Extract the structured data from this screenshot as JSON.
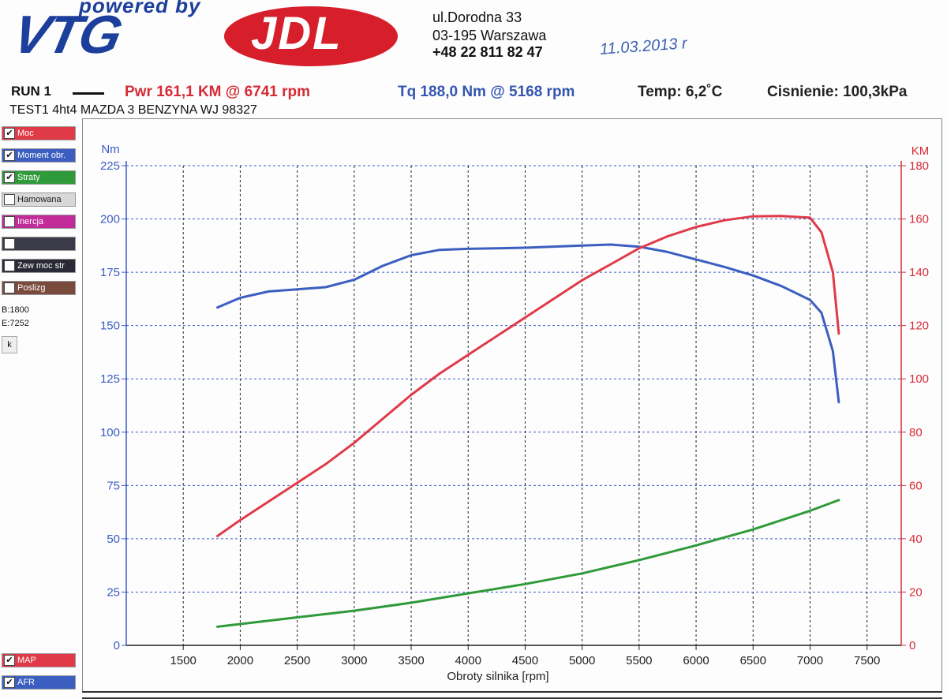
{
  "logo": {
    "powered": "powered by",
    "vtg": "VTG",
    "jdl": "JDL"
  },
  "address": {
    "street": "ul.Dorodna 33",
    "city": "03-195 Warszawa",
    "phone": "+48 22 811 82 47"
  },
  "handwritten_date": "11.03.2013 r",
  "header": {
    "run": "RUN 1",
    "pwr": "Pwr  161,1 KM @ 6741 rpm",
    "tq": "Tq 188,0 Nm @ 5168 rpm",
    "temp": "Temp: 6,2˚C",
    "pressure": "Cisnienie: 100,3kPa",
    "test": "TEST1  4ht4 MAZDA 3 BENZYNA WJ 98327"
  },
  "sidebar": {
    "items": [
      {
        "label": "Moc",
        "checked": true,
        "color": "#e03a48"
      },
      {
        "label": "Moment obr.",
        "checked": true,
        "color": "#3b5ec0"
      },
      {
        "label": "Straty",
        "checked": true,
        "color": "#2f9a3a"
      },
      {
        "label": "Hamowana",
        "checked": false,
        "color": "#d8d8d8"
      },
      {
        "label": "Inercja",
        "checked": false,
        "color": "#c22b9a"
      },
      {
        "label": "",
        "checked": false,
        "color": "#3a3a48"
      },
      {
        "label": "Zew moc str",
        "checked": false,
        "color": "#2a2a36"
      },
      {
        "label": "Poslizg",
        "checked": false,
        "color": "#7a4a3c"
      }
    ],
    "range_b": "B:1800",
    "range_e": "E:7252",
    "k_button": "k",
    "bottom_items": [
      {
        "label": "MAP",
        "checked": true,
        "color": "#e03a48"
      },
      {
        "label": "AFR",
        "checked": true,
        "color": "#3b5ec0"
      }
    ]
  },
  "chart_data": {
    "type": "line",
    "xlabel": "Obroty silnika [rpm]",
    "ylabel_left": "Nm",
    "ylabel_right": "KM",
    "xlim": [
      1000,
      7800
    ],
    "xticks": [
      1500,
      2000,
      2500,
      3000,
      3500,
      4000,
      4500,
      5000,
      5500,
      6000,
      6500,
      7000,
      7500
    ],
    "ylim_left": [
      0,
      225
    ],
    "yticks_left": [
      0,
      25,
      50,
      75,
      100,
      125,
      150,
      175,
      200,
      225
    ],
    "ylim_right": [
      0,
      180
    ],
    "yticks_right": [
      0,
      20,
      40,
      60,
      80,
      100,
      120,
      140,
      160,
      180
    ],
    "grid": true,
    "series": [
      {
        "name": "Moment obr.",
        "axis": "left",
        "color": "#3b5ec0",
        "x": [
          1800,
          2000,
          2250,
          2500,
          2750,
          3000,
          3250,
          3500,
          3750,
          4000,
          4500,
          5000,
          5250,
          5500,
          5750,
          6000,
          6250,
          6500,
          6750,
          7000,
          7100,
          7200,
          7252
        ],
        "y": [
          158.5,
          163,
          166,
          167,
          168,
          171.5,
          178,
          183,
          185.5,
          186,
          186.5,
          187.5,
          188,
          187,
          184.5,
          181,
          177.5,
          173.5,
          168.5,
          162,
          156,
          138,
          114
        ]
      },
      {
        "name": "Moc",
        "axis": "right",
        "color": "#e03a48",
        "x": [
          1800,
          2000,
          2250,
          2500,
          2750,
          3000,
          3250,
          3500,
          3750,
          4000,
          4500,
          5000,
          5250,
          5500,
          5750,
          6000,
          6250,
          6500,
          6741,
          7000,
          7100,
          7200,
          7252
        ],
        "y": [
          41,
          47,
          54,
          61,
          68,
          76,
          85,
          94,
          102,
          109,
          123,
          137,
          143,
          149,
          153.5,
          157,
          159.5,
          161,
          161.1,
          160.5,
          155,
          140,
          117
        ]
      },
      {
        "name": "Straty",
        "axis": "right",
        "color": "#2f9a3a",
        "x": [
          1800,
          2000,
          2500,
          3000,
          3500,
          4000,
          4500,
          5000,
          5500,
          6000,
          6500,
          7000,
          7252
        ],
        "y": [
          7,
          8,
          10.5,
          13,
          16,
          19.5,
          23,
          27,
          32,
          37.5,
          43.5,
          50.5,
          54.5
        ]
      }
    ]
  }
}
